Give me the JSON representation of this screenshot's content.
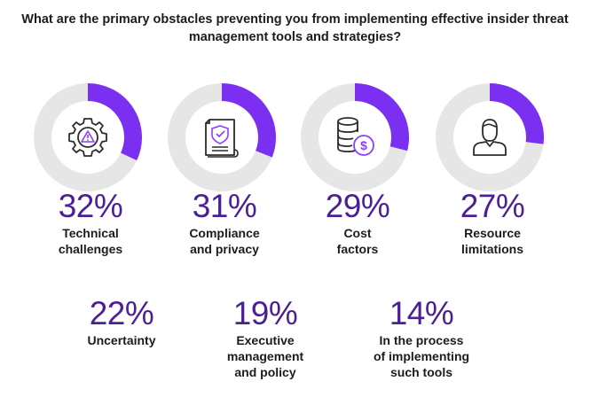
{
  "title_lines": [
    "What are the primary obstacles preventing you from implementing effective insider threat",
    "management tools and strategies?"
  ],
  "colors": {
    "accent": "#7b2ff0",
    "track": "#e6e6e6",
    "percent_text": "#4b1f97",
    "icon": "#2b2b2b",
    "icon_accent": "#8a3ffc"
  },
  "chart_data": {
    "type": "donut",
    "unit": "%",
    "items": [
      {
        "label_lines": [
          "Technical",
          "challenges"
        ],
        "value": 32,
        "display": "32%",
        "icon": "gear-warning-icon",
        "donut": true
      },
      {
        "label_lines": [
          "Compliance",
          "and privacy"
        ],
        "value": 31,
        "display": "31%",
        "icon": "certificate-shield-icon",
        "donut": true
      },
      {
        "label_lines": [
          "Cost",
          "factors"
        ],
        "value": 29,
        "display": "29%",
        "icon": "coins-dollar-icon",
        "donut": true
      },
      {
        "label_lines": [
          "Resource",
          "limitations"
        ],
        "value": 27,
        "display": "27%",
        "icon": "person-icon",
        "donut": true
      },
      {
        "label_lines": [
          "Uncertainty"
        ],
        "value": 22,
        "display": "22%",
        "donut": false
      },
      {
        "label_lines": [
          "Executive",
          "management",
          "and policy"
        ],
        "value": 19,
        "display": "19%",
        "donut": false
      },
      {
        "label_lines": [
          "In the process",
          "of implementing",
          "such tools"
        ],
        "value": 14,
        "display": "14%",
        "donut": false
      }
    ]
  }
}
